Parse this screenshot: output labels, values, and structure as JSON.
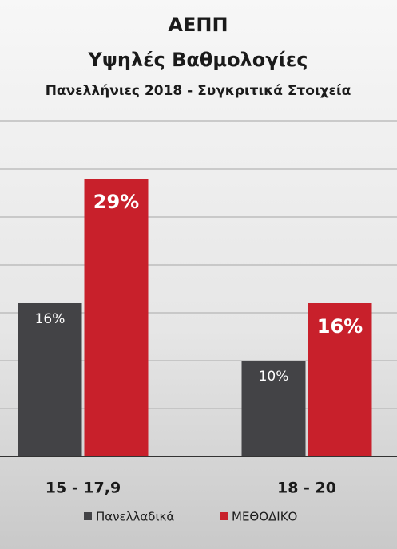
{
  "chart_data": {
    "type": "bar",
    "title": "ΑΕΠΠ",
    "subtitle": "Υψηλές Βαθμολογίες",
    "subtitle2": "Πανελλήνιες 2018 - Συγκριτικά Στοιχεία",
    "categories": [
      "15 - 17,9",
      "18 - 20"
    ],
    "series": [
      {
        "name": "Πανελλαδικά",
        "color": "#434346",
        "values": [
          16,
          10
        ],
        "value_labels": [
          "16%",
          "10%"
        ]
      },
      {
        "name": "ΜΕΘΟΔΙΚΟ",
        "color": "#c8202b",
        "values": [
          29,
          16
        ],
        "value_labels": [
          "29%",
          "16%"
        ]
      }
    ],
    "ylim": [
      0,
      35
    ],
    "yticks": [
      0,
      5,
      10,
      15,
      20,
      25,
      30,
      35
    ],
    "grid": true,
    "legend": "bottom"
  }
}
